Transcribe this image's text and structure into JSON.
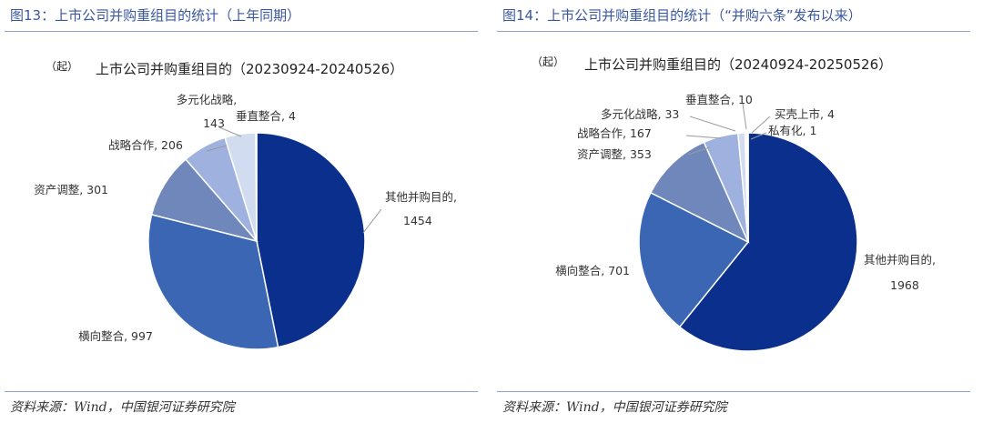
{
  "figures": [
    {
      "caption": "图13：上市公司并购重组目的统计（上年同期）",
      "source": "资料来源：Wind，中国银河证券研究院"
    },
    {
      "caption": "图14：上市公司并购重组目的统计（“并购六条”发布以来）",
      "source": "资料来源：Wind，中国银河证券研究院"
    }
  ],
  "chart_data": [
    {
      "type": "pie",
      "title": "上市公司并购重组目的（20230924-20240526）",
      "unit": "（起）",
      "slices": [
        {
          "name": "其他并购目的",
          "value": 1454,
          "label": [
            "其他并购目的,",
            "1454"
          ],
          "color": "#0b2f8c"
        },
        {
          "name": "横向整合",
          "value": 997,
          "label": [
            "横向整合, 997"
          ],
          "color": "#3b66b3"
        },
        {
          "name": "资产调整",
          "value": 301,
          "label": [
            "资产调整, 301"
          ],
          "color": "#6f87bb"
        },
        {
          "name": "战略合作",
          "value": 206,
          "label": [
            "战略合作, 206"
          ],
          "color": "#9fb2df"
        },
        {
          "name": "多元化战略",
          "value": 143,
          "label": [
            "多元化战略,",
            "143"
          ],
          "color": "#d2dcf0"
        },
        {
          "name": "垂直整合",
          "value": 4,
          "label": [
            "垂直整合, 4"
          ],
          "color": "#e8ecf6"
        }
      ]
    },
    {
      "type": "pie",
      "title": "上市公司并购重组目的（20240924-20250526）",
      "unit": "（起）",
      "slices": [
        {
          "name": "其他并购目的",
          "value": 1968,
          "label": [
            "其他并购目的,",
            "1968"
          ],
          "color": "#0b2f8c"
        },
        {
          "name": "横向整合",
          "value": 701,
          "label": [
            "横向整合, 701"
          ],
          "color": "#3b66b3"
        },
        {
          "name": "资产调整",
          "value": 353,
          "label": [
            "资产调整, 353"
          ],
          "color": "#6f87bb"
        },
        {
          "name": "战略合作",
          "value": 167,
          "label": [
            "战略合作, 167"
          ],
          "color": "#9fb2df"
        },
        {
          "name": "多元化战略",
          "value": 33,
          "label": [
            "多元化战略, 33"
          ],
          "color": "#d2dcf0"
        },
        {
          "name": "垂直整合",
          "value": 10,
          "label": [
            "垂直整合, 10"
          ],
          "color": "#e8ecf6"
        },
        {
          "name": "买壳上市",
          "value": 4,
          "label": [
            "买壳上市, 4"
          ],
          "color": "#5a5a5a"
        },
        {
          "name": "私有化",
          "value": 1,
          "label": [
            "私有化, 1"
          ],
          "color": "#222222"
        }
      ]
    }
  ]
}
